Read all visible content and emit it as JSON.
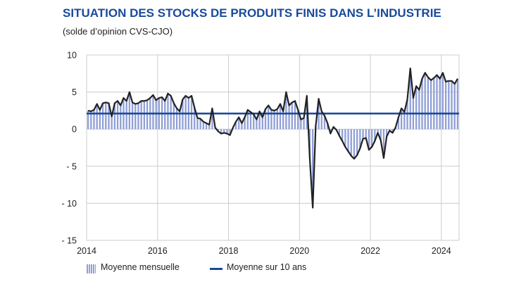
{
  "header": {
    "title": "SITUATION DES STOCKS DE PRODUITS FINIS DANS L’INDUSTRIE",
    "subtitle": "(solde d’opinion CVS-CJO)"
  },
  "legend": {
    "bars_label": "Moyenne mensuelle",
    "line_label": "Moyenne sur 10 ans"
  },
  "colors": {
    "title": "#1a4a9c",
    "bars": "#8f9fd6",
    "line": "#222222",
    "average": "#1a4a9c",
    "grid": "#cccccc"
  },
  "chart_data": {
    "type": "bar",
    "x_start": "2014-01",
    "frequency": "monthly",
    "ylim": [
      -15,
      10
    ],
    "yticks": [
      10,
      5,
      0,
      -5,
      -10,
      -15
    ],
    "ytick_labels": [
      "10",
      "5",
      "0",
      "- 5",
      "- 10",
      "- 15"
    ],
    "xlim": [
      2014,
      2024.5
    ],
    "xticks": [
      "2014",
      "2016",
      "2018",
      "2020",
      "2022",
      "2024"
    ],
    "grid": true,
    "legend_position": "bottom",
    "average_10y": 2.1,
    "values": [
      2.5,
      2.4,
      2.6,
      3.4,
      2.6,
      3.5,
      3.6,
      3.5,
      1.7,
      3.5,
      3.8,
      3.2,
      4.2,
      3.8,
      5.0,
      3.6,
      3.4,
      3.5,
      3.8,
      3.8,
      3.9,
      4.2,
      4.6,
      3.9,
      4.2,
      4.3,
      3.8,
      4.8,
      4.5,
      3.5,
      2.8,
      2.4,
      4.0,
      4.5,
      4.2,
      4.5,
      2.9,
      1.5,
      1.4,
      1.0,
      0.8,
      0.6,
      2.8,
      0.2,
      -0.3,
      -0.6,
      -0.5,
      -0.6,
      -0.8,
      0.2,
      1.0,
      1.6,
      0.8,
      1.6,
      2.6,
      2.3,
      2.0,
      1.3,
      2.4,
      1.6,
      2.7,
      3.2,
      2.6,
      2.5,
      2.7,
      3.4,
      2.4,
      5.0,
      3.2,
      3.6,
      3.8,
      2.6,
      1.3,
      1.5,
      4.5,
      -4.0,
      -10.6,
      0.4,
      4.1,
      2.4,
      1.8,
      0.8,
      -0.6,
      0.3,
      -0.1,
      -0.9,
      -1.6,
      -2.4,
      -3.0,
      -3.6,
      -4.0,
      -3.5,
      -2.6,
      -1.3,
      -1.2,
      -2.8,
      -2.4,
      -1.6,
      -0.5,
      -1.5,
      -3.9,
      -1.0,
      -0.2,
      -0.5,
      0.2,
      1.6,
      2.8,
      2.3,
      4.0,
      8.2,
      4.2,
      5.8,
      5.3,
      6.8,
      7.6,
      7.0,
      6.6,
      6.9,
      7.3,
      6.8,
      7.6,
      6.4,
      6.5,
      6.5,
      6.1,
      6.8
    ]
  }
}
